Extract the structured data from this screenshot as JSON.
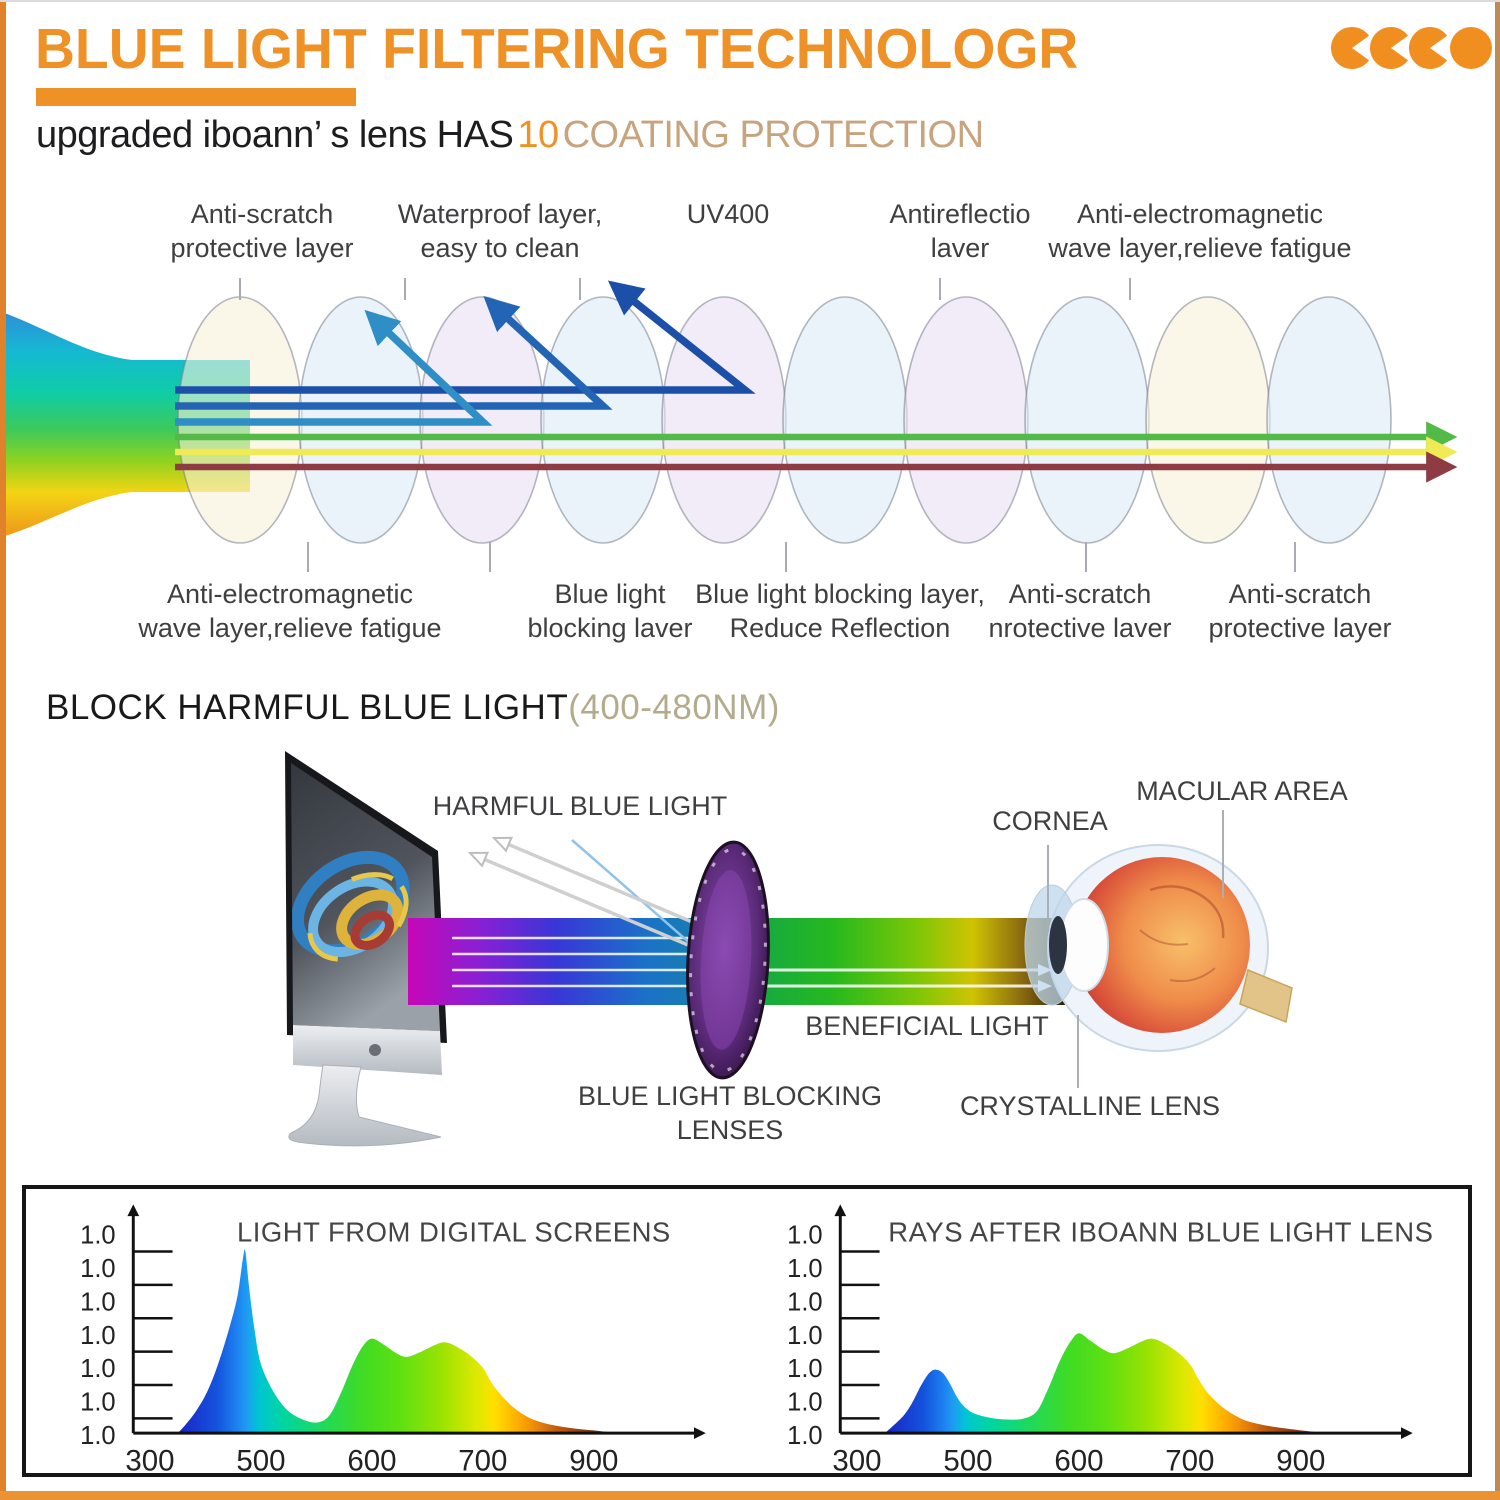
{
  "header": {
    "title": "BLUE LIGHT FILTERING TECHNOLOGR",
    "subtitle_prefix": "upgraded iboann’ s lens HAS",
    "subtitle_number": "10",
    "subtitle_suffix": "COATING PROTECTION",
    "accent_color": "#EE9227",
    "logo_color": "#F08E20",
    "logo_alt": "brand logo of four orange disc glyphs"
  },
  "coating_diagram": {
    "top_labels": [
      {
        "line1": "Anti-scratch",
        "line2": "protective layer"
      },
      {
        "line1": "Waterproof layer,",
        "line2": "easy to clean"
      },
      {
        "line1": "UV400",
        "line2": ""
      },
      {
        "line1": "Antireflectio",
        "line2": "laver"
      },
      {
        "line1": "Anti-electromagnetic",
        "line2": "wave layer,relieve fatigue"
      }
    ],
    "bottom_labels": [
      {
        "line1": "Anti-electromagnetic",
        "line2": "wave layer,relieve fatigue"
      },
      {
        "line1": "Blue light",
        "line2": "blocking laver"
      },
      {
        "line1": "Blue light blocking layer,",
        "line2": "Reduce Reflection"
      },
      {
        "line1": "Anti-scratch",
        "line2": "nrotective laver"
      },
      {
        "line1": "Anti-scratch",
        "line2": "protective layer"
      }
    ],
    "layers": [
      "#F9F2D8",
      "#DCEBF7",
      "#EADFF4",
      "#DCEBF7",
      "#EADFF4",
      "#DCEBF7",
      "#EADFF4",
      "#DCEBF7",
      "#F9F2D8",
      "#DCEBF7"
    ],
    "spectrum_colors": {
      "top": "#2E8FD9",
      "middle": "#10CDA5",
      "bottom": "#F0961C"
    },
    "ray_colors": {
      "blue_dark": "#1C4FA8",
      "blue_mid": "#2365B4",
      "blue_light": "#2F8EC6",
      "green": "#53B947",
      "yellow": "#F0EA57",
      "dark_red": "#8E3B44"
    }
  },
  "block_section": {
    "title": "BLOCK HARMFUL BLUE LIGHT",
    "range": "(400-480NM)",
    "labels": {
      "harmful": "HARMFUL BLUE LIGHT",
      "beneficial": "BENEFICIAL LIGHT",
      "lenses": "BLUE LIGHT BLOCKING LENSES",
      "cornea": "CORNEA",
      "macular": "MACULAR AREA",
      "crystalline": "CRYSTALLINE LENS"
    }
  },
  "chart_data": [
    {
      "type": "area",
      "title": "LIGHT FROM DIGITAL SCREENS",
      "x_ticks": [
        300,
        500,
        600,
        700,
        900
      ],
      "y_tick_labels": [
        "1.0",
        "1.0",
        "1.0",
        "1.0",
        "1.0",
        "1.0",
        "1.0"
      ],
      "ylim": [
        0,
        1.0
      ],
      "x_unit": "nm",
      "points": [
        [
          350,
          0
        ],
        [
          365,
          0.05
        ],
        [
          385,
          0.13
        ],
        [
          405,
          0.24
        ],
        [
          425,
          0.4
        ],
        [
          445,
          0.6
        ],
        [
          458,
          0.76
        ],
        [
          468,
          0.97
        ],
        [
          472,
          1.0
        ],
        [
          478,
          0.82
        ],
        [
          488,
          0.58
        ],
        [
          500,
          0.38
        ],
        [
          512,
          0.22
        ],
        [
          525,
          0.12
        ],
        [
          540,
          0.07
        ],
        [
          552,
          0.06
        ],
        [
          562,
          0.1
        ],
        [
          572,
          0.22
        ],
        [
          583,
          0.38
        ],
        [
          592,
          0.48
        ],
        [
          600,
          0.52
        ],
        [
          610,
          0.49
        ],
        [
          622,
          0.44
        ],
        [
          632,
          0.42
        ],
        [
          645,
          0.45
        ],
        [
          655,
          0.48
        ],
        [
          665,
          0.5
        ],
        [
          675,
          0.48
        ],
        [
          688,
          0.43
        ],
        [
          700,
          0.36
        ],
        [
          715,
          0.28
        ],
        [
          730,
          0.22
        ],
        [
          745,
          0.17
        ],
        [
          760,
          0.13
        ],
        [
          780,
          0.09
        ],
        [
          800,
          0.065
        ],
        [
          825,
          0.045
        ],
        [
          850,
          0.032
        ],
        [
          875,
          0.022
        ],
        [
          900,
          0.015
        ],
        [
          920,
          0.008
        ],
        [
          945,
          0
        ]
      ]
    },
    {
      "type": "area",
      "title": "RAYS AFTER IBOANN BLUE LIGHT LENS",
      "x_ticks": [
        300,
        500,
        600,
        700,
        900
      ],
      "y_tick_labels": [
        "1.0",
        "1.0",
        "1.0",
        "1.0",
        "1.0",
        "1.0",
        "1.0"
      ],
      "ylim": [
        0,
        1.0
      ],
      "x_unit": "nm",
      "points": [
        [
          350,
          0
        ],
        [
          365,
          0.04
        ],
        [
          385,
          0.1
        ],
        [
          400,
          0.17
        ],
        [
          415,
          0.26
        ],
        [
          430,
          0.33
        ],
        [
          442,
          0.35
        ],
        [
          455,
          0.33
        ],
        [
          468,
          0.27
        ],
        [
          480,
          0.2
        ],
        [
          492,
          0.15
        ],
        [
          505,
          0.11
        ],
        [
          520,
          0.085
        ],
        [
          535,
          0.075
        ],
        [
          550,
          0.08
        ],
        [
          562,
          0.12
        ],
        [
          572,
          0.24
        ],
        [
          583,
          0.4
        ],
        [
          592,
          0.5
        ],
        [
          600,
          0.55
        ],
        [
          610,
          0.51
        ],
        [
          622,
          0.46
        ],
        [
          632,
          0.44
        ],
        [
          645,
          0.47
        ],
        [
          655,
          0.5
        ],
        [
          665,
          0.52
        ],
        [
          675,
          0.5
        ],
        [
          688,
          0.45
        ],
        [
          700,
          0.38
        ],
        [
          715,
          0.3
        ],
        [
          730,
          0.23
        ],
        [
          745,
          0.18
        ],
        [
          760,
          0.14
        ],
        [
          780,
          0.1
        ],
        [
          800,
          0.07
        ],
        [
          825,
          0.05
        ],
        [
          850,
          0.035
        ],
        [
          875,
          0.025
        ],
        [
          900,
          0.015
        ],
        [
          920,
          0.008
        ],
        [
          935,
          0
        ]
      ]
    }
  ]
}
